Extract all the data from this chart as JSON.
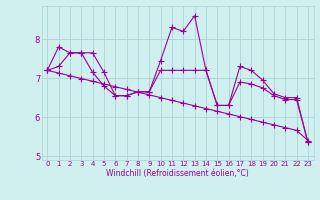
{
  "x": [
    0,
    1,
    2,
    3,
    4,
    5,
    6,
    7,
    8,
    9,
    10,
    11,
    12,
    13,
    14,
    15,
    16,
    17,
    18,
    19,
    20,
    21,
    22,
    23
  ],
  "series_jagged": [
    7.2,
    7.8,
    7.65,
    7.65,
    7.15,
    6.8,
    6.55,
    6.55,
    6.65,
    6.65,
    7.45,
    8.3,
    8.2,
    8.6,
    7.2,
    6.3,
    6.3,
    7.3,
    7.2,
    6.95,
    6.6,
    6.5,
    6.5,
    5.35
  ],
  "series_smooth": [
    7.2,
    7.3,
    7.65,
    7.65,
    7.65,
    7.15,
    6.55,
    6.55,
    6.65,
    6.65,
    7.2,
    7.2,
    7.2,
    7.2,
    7.2,
    6.3,
    6.3,
    6.9,
    6.85,
    6.75,
    6.55,
    6.45,
    6.45,
    5.35
  ],
  "trend": [
    7.2,
    7.13,
    7.06,
    6.99,
    6.92,
    6.85,
    6.78,
    6.71,
    6.64,
    6.57,
    6.5,
    6.43,
    6.36,
    6.29,
    6.22,
    6.15,
    6.08,
    6.01,
    5.94,
    5.87,
    5.8,
    5.73,
    5.66,
    5.4
  ],
  "line_color": "#990099",
  "bg_color": "#d0f0f0",
  "grid_color": "#aad4d4",
  "xlabel": "Windchill (Refroidissement éolien,°C)",
  "ylim": [
    4.9,
    8.85
  ],
  "xlim": [
    -0.5,
    23.5
  ],
  "yticks": [
    5,
    6,
    7,
    8
  ],
  "xticks": [
    0,
    1,
    2,
    3,
    4,
    5,
    6,
    7,
    8,
    9,
    10,
    11,
    12,
    13,
    14,
    15,
    16,
    17,
    18,
    19,
    20,
    21,
    22,
    23
  ],
  "marker": "+",
  "markersize": 4,
  "linewidth": 0.8,
  "tick_fontsize": 5,
  "xlabel_fontsize": 5.5
}
